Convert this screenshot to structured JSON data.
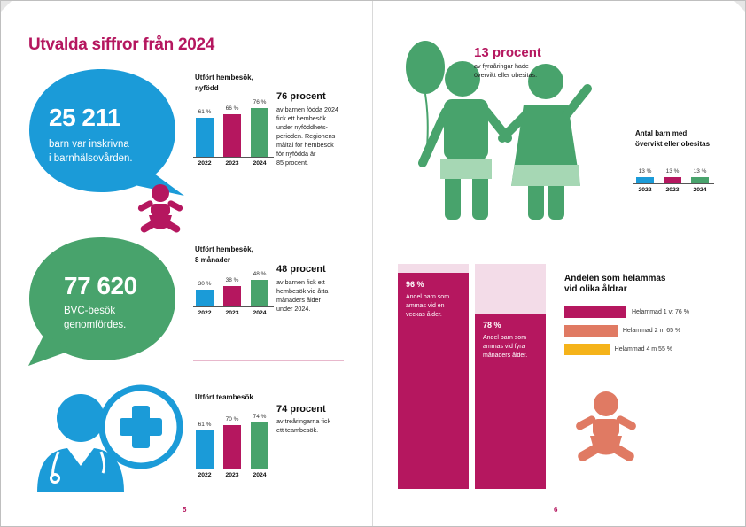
{
  "colors": {
    "magenta": "#b5175f",
    "blue": "#1b9bd8",
    "green": "#48a36c",
    "light_green": "#a6d7b4",
    "light_pink": "#f3dce8",
    "salmon": "#e07a63",
    "amber": "#f5b31a"
  },
  "left": {
    "title": "Utvalda siffror från 2024",
    "bubble1": {
      "number": "25 211",
      "text_line1": "barn var inskrivna",
      "text_line2": "i barnhälsovården."
    },
    "bubble2": {
      "number": "77 620",
      "text_line1": "BVC-besök",
      "text_line2": "genomfördes."
    },
    "icons": {
      "baby": "baby-icon",
      "doctor": "doctor-icon",
      "medical_cross": "medical-cross-icon"
    },
    "charts": [
      {
        "title_line1": "Utfört hembesök,",
        "title_line2": "nyfödd",
        "years": [
          "2022",
          "2023",
          "2024"
        ],
        "values": [
          61,
          66,
          76
        ],
        "value_labels": [
          "61 %",
          "66 %",
          "76 %"
        ],
        "headline": "76 procent",
        "lines": [
          "av barnen födda 2024",
          "fick ett hembesök",
          "under nyföddhets-",
          "perioden. Regionens",
          "måltal för hembesök",
          "för nyfödda är",
          "85 procent."
        ]
      },
      {
        "title_line1": "Utfört hembesök,",
        "title_line2": "8 månader",
        "years": [
          "2022",
          "2023",
          "2024"
        ],
        "values": [
          30,
          38,
          48
        ],
        "value_labels": [
          "30 %",
          "38 %",
          "48 %"
        ],
        "headline": "48 procent",
        "lines": [
          "av barnen fick ett",
          "hembesök vid åtta",
          "månaders ålder",
          "under 2024."
        ]
      },
      {
        "title_line1": "Utfört teambesök",
        "title_line2": "",
        "years": [
          "2022",
          "2023",
          "2024"
        ],
        "values": [
          61,
          70,
          74
        ],
        "value_labels": [
          "61 %",
          "70 %",
          "74 %"
        ],
        "headline": "74 procent",
        "lines": [
          "av treåringarna fick",
          "ett teambesök."
        ]
      }
    ],
    "page_number": "5"
  },
  "right": {
    "overweight": {
      "headline": "13 procent",
      "line1": "av fyraåringar hade",
      "line2": "övervikt eller obesitas.",
      "chart_title_line1": "Antal barn med",
      "chart_title_line2": "övervikt eller obesitas",
      "years": [
        "2022",
        "2023",
        "2024"
      ],
      "values": [
        13,
        13,
        13
      ],
      "value_labels": [
        "13 %",
        "13 %",
        "13 %"
      ]
    },
    "icons": {
      "balloon": "balloon-icon",
      "boy": "boy-icon",
      "girl": "girl-icon",
      "baby": "baby-icon"
    },
    "breastfeeding_columns": [
      {
        "value": 96,
        "label": "96 %",
        "lines": [
          "Andel barn som",
          "ammas vid en",
          "veckas ålder."
        ]
      },
      {
        "value": 78,
        "label": "78 %",
        "lines": [
          "Andel barn som",
          "ammas vid fyra",
          "månaders ålder."
        ]
      }
    ],
    "exclusive": {
      "title_line1": "Andelen som helammas",
      "title_line2": "vid olika åldrar",
      "items": [
        {
          "label": "Helammad 1 v: 76 %",
          "value": 76
        },
        {
          "label": "Helammad 2 m 65 %",
          "value": 65
        },
        {
          "label": "Helammad 4 m 55 %",
          "value": 55
        }
      ]
    },
    "page_number": "6"
  }
}
